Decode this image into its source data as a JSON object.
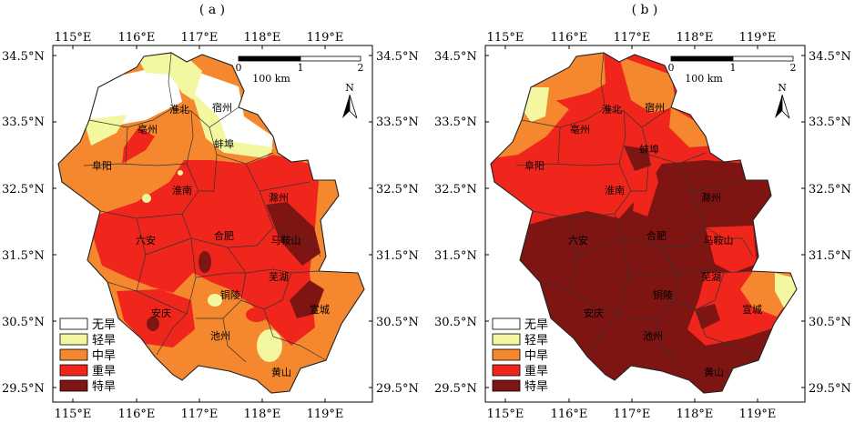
{
  "panels": [
    {
      "label": "( a )",
      "lon_ticks": [
        "115°E",
        "116°E",
        "117°E",
        "118°E",
        "119°E"
      ],
      "lat_ticks": [
        "34.5°N",
        "33.5°N",
        "32.5°N",
        "31.5°N",
        "30.5°N",
        "29.5°N"
      ],
      "scale": {
        "tick0": "0",
        "tick1": "1",
        "tick2": "2",
        "unit": "100 km"
      },
      "north": "N",
      "cities": [
        {
          "name": "宿州"
        },
        {
          "name": "淮北"
        },
        {
          "name": "亳州"
        },
        {
          "name": "蚌埠"
        },
        {
          "name": "阜阳"
        },
        {
          "name": "淮南"
        },
        {
          "name": "滁州"
        },
        {
          "name": "六安"
        },
        {
          "name": "合肥"
        },
        {
          "name": "马鞍山"
        },
        {
          "name": "芜湖"
        },
        {
          "name": "铜陵"
        },
        {
          "name": "安庆"
        },
        {
          "name": "宣城"
        },
        {
          "name": "池州"
        },
        {
          "name": "黄山"
        }
      ]
    },
    {
      "label": "( b )",
      "lon_ticks": [
        "115°E",
        "116°E",
        "117°E",
        "118°E",
        "119°E"
      ],
      "lat_ticks": [
        "34.5°N",
        "33.5°N",
        "32.5°N",
        "31.5°N",
        "30.5°N",
        "29.5°N"
      ],
      "scale": {
        "tick0": "0",
        "tick1": "1",
        "tick2": "2",
        "unit": "100 km"
      },
      "north": "N",
      "cities": [
        {
          "name": "宿州"
        },
        {
          "name": "淮北"
        },
        {
          "name": "亳州"
        },
        {
          "name": "蚌埠"
        },
        {
          "name": "阜阳"
        },
        {
          "name": "淮南"
        },
        {
          "name": "滁州"
        },
        {
          "name": "六安"
        },
        {
          "name": "合肥"
        },
        {
          "name": "马鞍山"
        },
        {
          "name": "芜湖"
        },
        {
          "name": "铜陵"
        },
        {
          "name": "安庆"
        },
        {
          "name": "宣城"
        },
        {
          "name": "池州"
        },
        {
          "name": "黄山"
        }
      ]
    }
  ],
  "legend": [
    {
      "label": "无旱",
      "color": "#ffffff"
    },
    {
      "label": "轻旱",
      "color": "#f2f7a0"
    },
    {
      "label": "中旱",
      "color": "#f5882e"
    },
    {
      "label": "重旱",
      "color": "#f0261d"
    },
    {
      "label": "特旱",
      "color": "#7e1512"
    }
  ]
}
